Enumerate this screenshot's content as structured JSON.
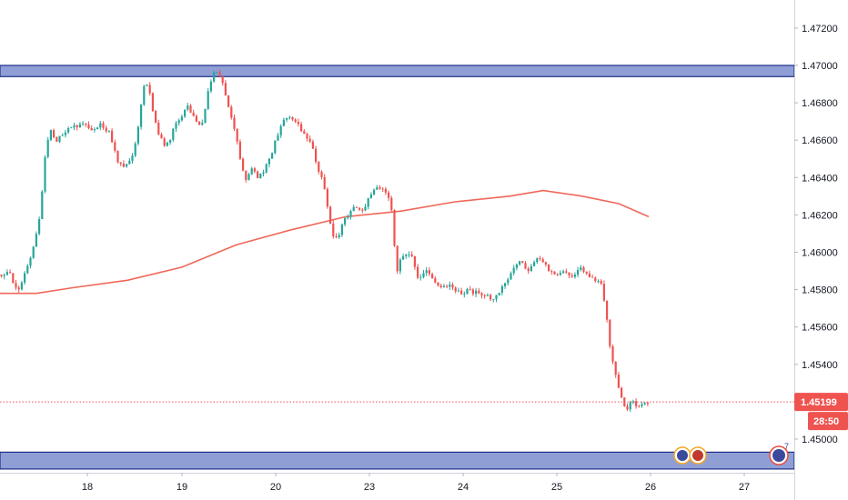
{
  "chart_data": {
    "type": "candlestick",
    "x_ticks": [
      "18",
      "19",
      "20",
      "23",
      "24",
      "25",
      "26",
      "27"
    ],
    "y_ticks": [
      "1.45000",
      "1.45200",
      "1.45400",
      "1.45600",
      "1.45800",
      "1.46000",
      "1.46200",
      "1.46400",
      "1.46600",
      "1.46800",
      "1.47000",
      "1.47200"
    ],
    "ylim": [
      1.4482,
      1.4735
    ],
    "grid": false,
    "legend": "none",
    "current_price": "1.45199",
    "current_price_value": 1.45199,
    "countdown": "28:50",
    "zones": [
      {
        "name": "resistance-zone",
        "from": 1.4694,
        "to": 1.47,
        "fill": "#8f9fd6",
        "stroke": "#1d2f8a"
      },
      {
        "name": "support-zone",
        "from": 1.4484,
        "to": 1.4493,
        "fill": "#8f9fd6",
        "stroke": "#1d2f8a"
      }
    ],
    "moving_average": [
      [
        0,
        1.4578
      ],
      [
        40,
        1.4578
      ],
      [
        80,
        1.4581
      ],
      [
        140,
        1.4585
      ],
      [
        200,
        1.4592
      ],
      [
        260,
        1.4604
      ],
      [
        320,
        1.4612
      ],
      [
        380,
        1.4619
      ],
      [
        440,
        1.4622
      ],
      [
        500,
        1.4627
      ],
      [
        560,
        1.463
      ],
      [
        597,
        1.4633
      ],
      [
        640,
        1.463
      ],
      [
        680,
        1.4626
      ],
      [
        713,
        1.4619
      ]
    ],
    "price_path": [
      [
        0,
        1.4588
      ],
      [
        10,
        1.459
      ],
      [
        20,
        1.4578
      ],
      [
        28,
        1.459
      ],
      [
        36,
        1.46
      ],
      [
        44,
        1.462
      ],
      [
        50,
        1.4655
      ],
      [
        56,
        1.4665
      ],
      [
        62,
        1.4658
      ],
      [
        70,
        1.4665
      ],
      [
        80,
        1.4667
      ],
      [
        90,
        1.4668
      ],
      [
        100,
        1.4666
      ],
      [
        110,
        1.4668
      ],
      [
        120,
        1.4665
      ],
      [
        128,
        1.465
      ],
      [
        136,
        1.4645
      ],
      [
        144,
        1.465
      ],
      [
        150,
        1.466
      ],
      [
        158,
        1.469
      ],
      [
        164,
        1.4688
      ],
      [
        170,
        1.467
      ],
      [
        176,
        1.4662
      ],
      [
        182,
        1.4655
      ],
      [
        190,
        1.4665
      ],
      [
        198,
        1.4672
      ],
      [
        206,
        1.4678
      ],
      [
        214,
        1.4672
      ],
      [
        222,
        1.4668
      ],
      [
        230,
        1.469
      ],
      [
        238,
        1.4698
      ],
      [
        246,
        1.4688
      ],
      [
        252,
        1.4675
      ],
      [
        258,
        1.4665
      ],
      [
        264,
        1.465
      ],
      [
        270,
        1.4638
      ],
      [
        276,
        1.4645
      ],
      [
        284,
        1.464
      ],
      [
        292,
        1.4645
      ],
      [
        300,
        1.4655
      ],
      [
        308,
        1.4668
      ],
      [
        316,
        1.4672
      ],
      [
        324,
        1.467
      ],
      [
        332,
        1.4665
      ],
      [
        340,
        1.466
      ],
      [
        348,
        1.4648
      ],
      [
        356,
        1.4635
      ],
      [
        362,
        1.4618
      ],
      [
        368,
        1.4605
      ],
      [
        374,
        1.4612
      ],
      [
        382,
        1.462
      ],
      [
        390,
        1.4625
      ],
      [
        398,
        1.4622
      ],
      [
        406,
        1.463
      ],
      [
        414,
        1.4634
      ],
      [
        422,
        1.4634
      ],
      [
        430,
        1.4625
      ],
      [
        436,
        1.459
      ],
      [
        444,
        1.46
      ],
      [
        452,
        1.4598
      ],
      [
        460,
        1.4585
      ],
      [
        468,
        1.459
      ],
      [
        476,
        1.4585
      ],
      [
        484,
        1.458
      ],
      [
        492,
        1.4582
      ],
      [
        500,
        1.458
      ],
      [
        508,
        1.4578
      ],
      [
        516,
        1.458
      ],
      [
        524,
        1.4578
      ],
      [
        532,
        1.4578
      ],
      [
        540,
        1.4575
      ],
      [
        548,
        1.4578
      ],
      [
        556,
        1.4585
      ],
      [
        564,
        1.459
      ],
      [
        572,
        1.4595
      ],
      [
        580,
        1.459
      ],
      [
        588,
        1.4596
      ],
      [
        596,
        1.4595
      ],
      [
        604,
        1.459
      ],
      [
        612,
        1.4588
      ],
      [
        620,
        1.459
      ],
      [
        628,
        1.4585
      ],
      [
        636,
        1.4592
      ],
      [
        644,
        1.459
      ],
      [
        652,
        1.4585
      ],
      [
        660,
        1.4585
      ],
      [
        666,
        1.457
      ],
      [
        670,
        1.455
      ],
      [
        676,
        1.4535
      ],
      [
        682,
        1.4525
      ],
      [
        688,
        1.4515
      ],
      [
        694,
        1.452
      ],
      [
        700,
        1.4518
      ],
      [
        706,
        1.452
      ],
      [
        713,
        1.452
      ]
    ]
  },
  "colors": {
    "bull": "#26a69a",
    "bear": "#ef5350",
    "ma": "#f0675a",
    "zone_fill": "#8f9fd6",
    "zone_stroke": "#1d2f8a",
    "price_tag": "#ef5350",
    "axis_border": "#d1d4dc",
    "text": "#131722"
  },
  "badges": [
    {
      "name": "event-badge-flags",
      "icon": "flag-icon"
    },
    {
      "name": "event-badge-earnings",
      "icon": "earnings-icon",
      "count": "7"
    }
  ]
}
